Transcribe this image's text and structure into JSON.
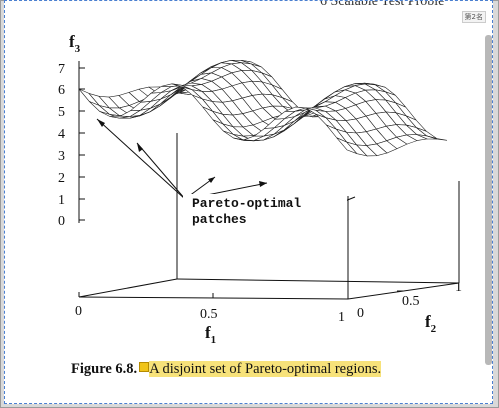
{
  "header": {
    "running_title": "6 Scalable Test Proble",
    "page_tag": "第2名"
  },
  "figure": {
    "z_axis_label": "f",
    "z_axis_sub": "3",
    "z_ticks": [
      "7",
      "6",
      "5",
      "4",
      "3",
      "2",
      "1",
      "0"
    ],
    "x_ticks": [
      "0",
      "0.5",
      "1"
    ],
    "x_axis_label": "f",
    "x_axis_sub": "1",
    "y_ticks": [
      "0",
      "0.5",
      "1"
    ],
    "y_axis_label": "f",
    "y_axis_sub": "2",
    "annotation_line1": "Pareto-optimal",
    "annotation_line2": "patches"
  },
  "caption": {
    "number": "Figure 6.8.",
    "text": "A disjoint set of Pareto-optimal regions."
  },
  "colors": {
    "highlight": "#f7e27a",
    "page_border": "#4a7fd0"
  }
}
